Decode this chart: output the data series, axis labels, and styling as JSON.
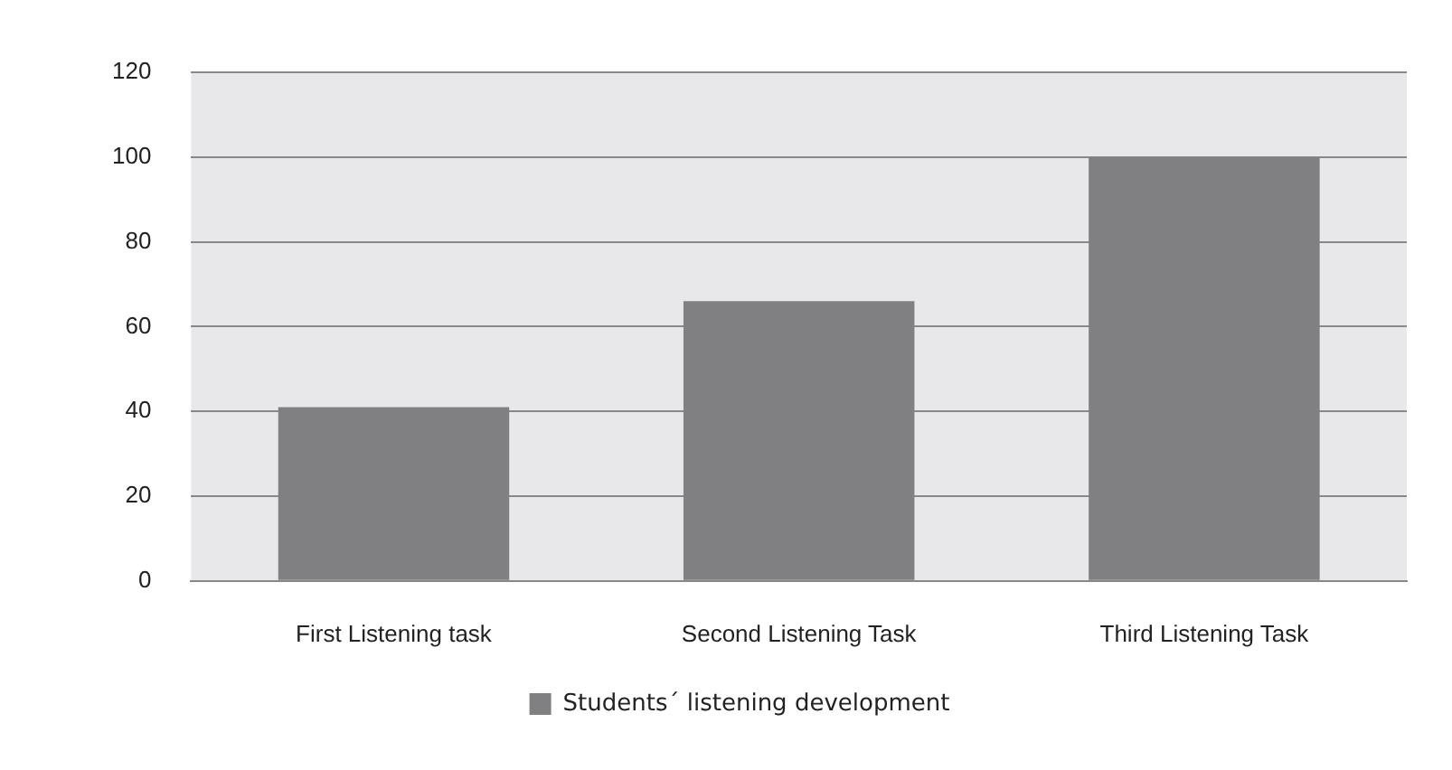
{
  "chart_data": {
    "type": "bar",
    "categories": [
      "First Listening task",
      "Second Listening Task",
      "Third Listening Task"
    ],
    "series": [
      {
        "name": "Students´ listening development",
        "color": "#808083",
        "values": [
          41,
          66,
          100
        ]
      }
    ],
    "ylim": [
      0,
      120
    ],
    "yticks": [
      0,
      20,
      40,
      60,
      80,
      100,
      120
    ],
    "grid": "y",
    "legend": "bottom"
  }
}
